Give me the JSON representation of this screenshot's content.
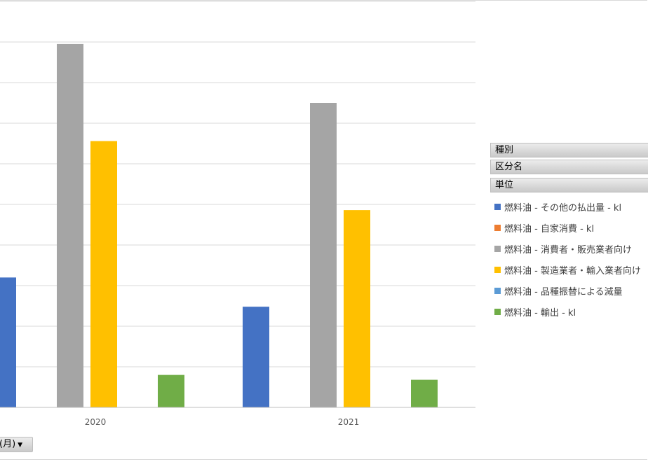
{
  "field_buttons": {
    "type": "種別",
    "category": "区分名",
    "unit": "単位"
  },
  "axis_button": {
    "label": "(月)",
    "arrow": "▼"
  },
  "chart_data": {
    "type": "bar",
    "categories": [
      "2020",
      "2021"
    ],
    "ylim": [
      0,
      100
    ],
    "grid": true,
    "legend_position": "right",
    "series": [
      {
        "name": "燃料油 - その他の払出量 - kl",
        "color": "#4472C4",
        "values": [
          32,
          24.8
        ]
      },
      {
        "name": "燃料油 - 自家消費 - kl",
        "color": "#ED7D31",
        "values": [
          0,
          0
        ]
      },
      {
        "name": "燃料油 - 消費者・販売業者向け",
        "color": "#A5A5A5",
        "values": [
          89.5,
          75
        ]
      },
      {
        "name": "燃料油 - 製造業者・輸入業者向け",
        "color": "#FFC000",
        "values": [
          65.6,
          48.6
        ]
      },
      {
        "name": "燃料油 - 品種振替による減量",
        "color": "#5B9BD5",
        "values": [
          0,
          0
        ]
      },
      {
        "name": "燃料油 - 輸出 - kl",
        "color": "#70AD47",
        "values": [
          8,
          6.8
        ]
      }
    ]
  }
}
